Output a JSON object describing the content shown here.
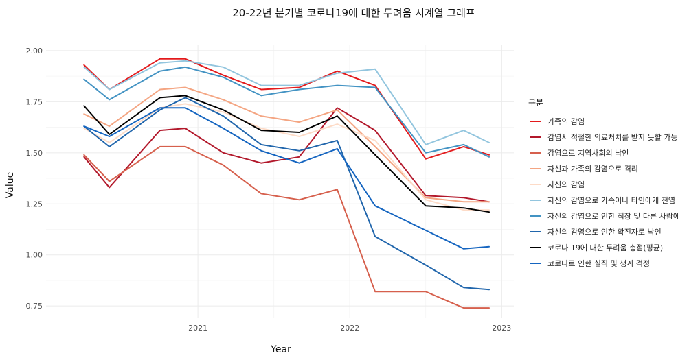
{
  "chart_data": {
    "type": "line",
    "title": "20-22년 분기별 코로나19에 대한 두려움 시계열 그래프",
    "xlabel": "Year",
    "ylabel": "Value",
    "legend_title": "구분",
    "legend_position": "right",
    "grid": true,
    "x": [
      2020.25,
      2020.417,
      2020.75,
      2020.917,
      2021.167,
      2021.417,
      2021.667,
      2021.917,
      2022.167,
      2022.5,
      2022.75,
      2022.917
    ],
    "x_ticks": [
      "2021",
      "2022",
      "2023"
    ],
    "y_ticks": [
      "0.75",
      "1.00",
      "1.25",
      "1.50",
      "1.75",
      "2.00"
    ],
    "xlim": [
      2020.0,
      2023.08
    ],
    "ylim": [
      0.69,
      2.03
    ],
    "series": [
      {
        "name": "가족의 감염",
        "color": "#e31a1c",
        "values": [
          1.93,
          1.81,
          1.96,
          1.96,
          1.88,
          1.81,
          1.82,
          1.9,
          1.83,
          1.47,
          1.53,
          1.49
        ]
      },
      {
        "name": "감염시 적절한 의료처치를 받지 못할 가능",
        "color": "#b2182b",
        "values": [
          1.48,
          1.33,
          1.61,
          1.62,
          1.5,
          1.45,
          1.48,
          1.72,
          1.61,
          1.29,
          1.28,
          1.26
        ]
      },
      {
        "name": "감염으로 지역사회의 낙인",
        "color": "#d6604d",
        "values": [
          1.49,
          1.36,
          1.53,
          1.53,
          1.44,
          1.3,
          1.27,
          1.32,
          0.82,
          0.82,
          0.74,
          0.74
        ]
      },
      {
        "name": "자신과 가족의 감염으로 격리",
        "color": "#f4a582",
        "values": [
          1.69,
          1.63,
          1.81,
          1.82,
          1.76,
          1.68,
          1.65,
          1.71,
          1.53,
          1.28,
          1.26,
          1.26
        ]
      },
      {
        "name": "자신의 감염",
        "color": "#fddbc7",
        "values": [
          1.62,
          1.55,
          1.72,
          1.74,
          1.7,
          1.62,
          1.58,
          1.64,
          1.56,
          1.27,
          1.22,
          1.22
        ]
      },
      {
        "name": "자신의 감염으로 가족이나 타인에게 전염",
        "color": "#92c5de",
        "values": [
          1.92,
          1.81,
          1.94,
          1.95,
          1.92,
          1.83,
          1.83,
          1.89,
          1.91,
          1.54,
          1.61,
          1.55
        ]
      },
      {
        "name": "자신의 감염으로 인한 직장 및 다른 사람에",
        "color": "#4393c3",
        "values": [
          1.86,
          1.76,
          1.9,
          1.92,
          1.87,
          1.78,
          1.81,
          1.83,
          1.82,
          1.5,
          1.54,
          1.48
        ]
      },
      {
        "name": "자신의 감염으로 인한 확진자로 낙인",
        "color": "#2166ac",
        "values": [
          1.63,
          1.53,
          1.71,
          1.77,
          1.68,
          1.54,
          1.51,
          1.56,
          1.09,
          0.95,
          0.84,
          0.83
        ]
      },
      {
        "name": "코로나 19에 대한 두려움 총점(평균)",
        "color": "#000000",
        "values": [
          1.73,
          1.59,
          1.77,
          1.78,
          1.71,
          1.61,
          1.6,
          1.68,
          1.49,
          1.24,
          1.23,
          1.21
        ]
      },
      {
        "name": "코로나로 인한 실직 및 생계 걱정",
        "color": "#1565c0",
        "values": [
          1.63,
          1.58,
          1.72,
          1.72,
          1.62,
          1.51,
          1.45,
          1.52,
          1.24,
          1.12,
          1.03,
          1.04
        ]
      }
    ]
  }
}
